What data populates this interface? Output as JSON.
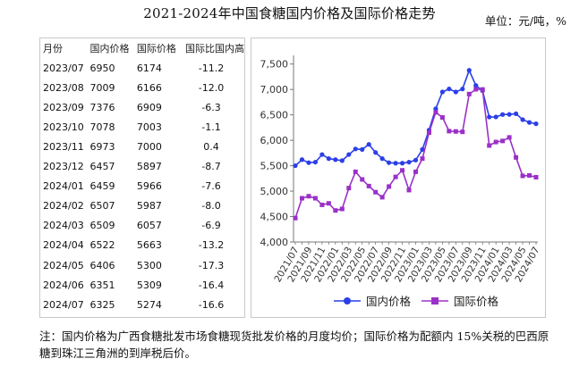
{
  "title": "2021-2024年中国食糖国内价格及国际价格走势",
  "unit": "单位：元/吨，%",
  "table": {
    "headers": [
      "月份",
      "国内价格",
      "国际价格",
      "国际比国内高"
    ],
    "rows": [
      [
        "2023/07",
        "6950",
        "6174",
        "-11.2"
      ],
      [
        "2023/08",
        "7009",
        "6166",
        "-12.0"
      ],
      [
        "2023/09",
        "7376",
        "6909",
        "-6.3"
      ],
      [
        "2023/10",
        "7078",
        "7003",
        "-1.1"
      ],
      [
        "2023/11",
        "6973",
        "7000",
        "0.4"
      ],
      [
        "2023/12",
        "6457",
        "5897",
        "-8.7"
      ],
      [
        "2024/01",
        "6459",
        "5966",
        "-7.6"
      ],
      [
        "2024/02",
        "6507",
        "5987",
        "-8.0"
      ],
      [
        "2024/03",
        "6509",
        "6057",
        "-6.9"
      ],
      [
        "2024/04",
        "6522",
        "5663",
        "-13.2"
      ],
      [
        "2024/05",
        "6406",
        "5300",
        "-17.3"
      ],
      [
        "2024/06",
        "6351",
        "5309",
        "-16.4"
      ],
      [
        "2024/07",
        "6325",
        "5274",
        "-16.6"
      ]
    ]
  },
  "chart_data": {
    "type": "line",
    "x": [
      "2021/07",
      "2021/08",
      "2021/09",
      "2021/10",
      "2021/11",
      "2021/12",
      "2022/01",
      "2022/02",
      "2022/03",
      "2022/04",
      "2022/05",
      "2022/06",
      "2022/07",
      "2022/08",
      "2022/09",
      "2022/10",
      "2022/11",
      "2022/12",
      "2023/01",
      "2023/02",
      "2023/03",
      "2023/04",
      "2023/05",
      "2023/06",
      "2023/07",
      "2023/08",
      "2023/09",
      "2023/10",
      "2023/11",
      "2023/12",
      "2024/01",
      "2024/02",
      "2024/03",
      "2024/04",
      "2024/05",
      "2024/06",
      "2024/07"
    ],
    "x_tick_labels": [
      "2021/07",
      "2021/09",
      "2021/11",
      "2022/01",
      "2022/03",
      "2022/05",
      "2022/07",
      "2022/09",
      "2022/11",
      "2023/01",
      "2023/03",
      "2023/05",
      "2023/07",
      "2023/09",
      "2023/11",
      "2024/01",
      "2024/03",
      "2024/05",
      "2024/07"
    ],
    "y_ticks": [
      "4,000",
      "4,500",
      "5,000",
      "5,500",
      "6,000",
      "6,500",
      "7,000",
      "7,500"
    ],
    "ylim": [
      4000,
      7600
    ],
    "series": [
      {
        "name": "国内价格",
        "color": "#2b3fe8",
        "marker": "circle",
        "values": [
          5500,
          5620,
          5560,
          5570,
          5720,
          5640,
          5620,
          5600,
          5720,
          5830,
          5820,
          5920,
          5760,
          5640,
          5560,
          5550,
          5550,
          5570,
          5610,
          5820,
          6200,
          6620,
          6950,
          7010,
          6950,
          7009,
          7376,
          7078,
          6973,
          6457,
          6459,
          6507,
          6509,
          6522,
          6406,
          6351,
          6325
        ]
      },
      {
        "name": "国际价格",
        "color": "#9b30c8",
        "marker": "square",
        "values": [
          4470,
          4860,
          4900,
          4860,
          4730,
          4760,
          4620,
          4650,
          5060,
          5380,
          5230,
          5100,
          4980,
          4880,
          5090,
          5280,
          5410,
          5020,
          5380,
          5640,
          6150,
          6550,
          6450,
          6180,
          6174,
          6166,
          6909,
          7003,
          7000,
          5897,
          5966,
          5987,
          6057,
          5663,
          5300,
          5309,
          5274
        ]
      }
    ],
    "legend_position": "bottom",
    "grid": false
  },
  "note": "注：国内价格为广西食糖批发市场食糖现货批发价格的月度均价；国际价格为配额内 15%关税的巴西原糖到珠江三角洲的到岸税后价。"
}
